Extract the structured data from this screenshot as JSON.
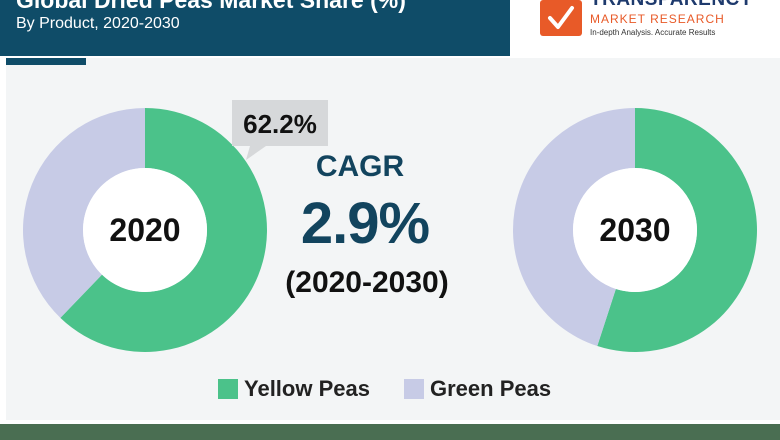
{
  "header": {
    "title": "Global Dried Peas Market Share (%)",
    "subtitle": "By Product, 2020-2030"
  },
  "logo": {
    "word": "TRANSPARENCY",
    "sub": "MARKET RESEARCH",
    "tagline": "In-depth Analysis. Accurate Results"
  },
  "colors": {
    "header_bg": "#0f4c68",
    "yellow_peas": "#4bc28a",
    "green_peas": "#c7cbe6",
    "accent": "#12445e"
  },
  "cagr": {
    "label": "CAGR",
    "value": "2.9%",
    "period": "(2020-2030)"
  },
  "chart_data": [
    {
      "type": "pie",
      "center_label": "2020",
      "categories": [
        "Yellow Peas",
        "Green Peas"
      ],
      "values": [
        62.2,
        37.8
      ],
      "annotation": "62.2%"
    },
    {
      "type": "pie",
      "center_label": "2030",
      "categories": [
        "Yellow Peas",
        "Green Peas"
      ],
      "values": [
        55,
        45
      ]
    }
  ],
  "legend": [
    {
      "label": "Yellow Peas",
      "color": "#4bc28a"
    },
    {
      "label": "Green Peas",
      "color": "#c7cbe6"
    }
  ]
}
